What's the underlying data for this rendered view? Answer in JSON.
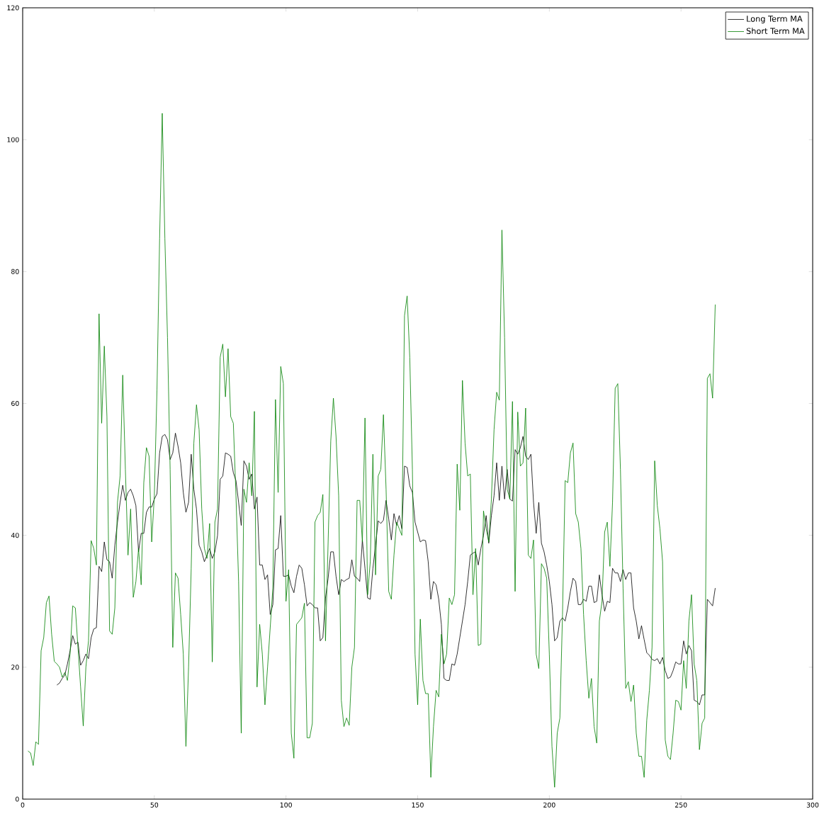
{
  "chart_data": {
    "type": "line",
    "xlim": [
      0,
      300
    ],
    "ylim": [
      0,
      120
    ],
    "xticks": [
      0,
      50,
      100,
      150,
      200,
      250,
      300
    ],
    "yticks": [
      0,
      20,
      40,
      60,
      80,
      100,
      120
    ],
    "legend": "top right",
    "marker": "none",
    "series": [
      {
        "name": "Long Term MA",
        "color": "#000000",
        "x": [
          13,
          14,
          15,
          16,
          17,
          18,
          19,
          20,
          21,
          22,
          23,
          24,
          25,
          26,
          27,
          28,
          29,
          30,
          31,
          32,
          33,
          34,
          35,
          36,
          37,
          38,
          39,
          40,
          41,
          42,
          43,
          44,
          45,
          46,
          47,
          48,
          49,
          50,
          51,
          52,
          53,
          54,
          55,
          56,
          57,
          58,
          59,
          60,
          61,
          62,
          63,
          64,
          65,
          66,
          67,
          68,
          69,
          70,
          71,
          72,
          73,
          74,
          75,
          76,
          77,
          78,
          79,
          80,
          81,
          82,
          83,
          84,
          85,
          86,
          87,
          88,
          89,
          90,
          91,
          92,
          93,
          94,
          95,
          96,
          97,
          98,
          99,
          100,
          101,
          102,
          103,
          104,
          105,
          106,
          107,
          108,
          109,
          110,
          111,
          112,
          113,
          114,
          115,
          116,
          117,
          118,
          119,
          120,
          121,
          122,
          123,
          124,
          125,
          126,
          127,
          128,
          129,
          130,
          131,
          132,
          133,
          134,
          135,
          136,
          137,
          138,
          139,
          140,
          141,
          142,
          143,
          144,
          145,
          146,
          147,
          148,
          149,
          150,
          151,
          152,
          153,
          154,
          155,
          156,
          157,
          158,
          159,
          160,
          161,
          162,
          163,
          164,
          165,
          166,
          167,
          168,
          169,
          170,
          171,
          172,
          173,
          174,
          175,
          176,
          177,
          178,
          179,
          180,
          181,
          182,
          183,
          184,
          185,
          186,
          187,
          188,
          189,
          190,
          191,
          192,
          193,
          194,
          195,
          196,
          197,
          198,
          199,
          200,
          201,
          202,
          203,
          204,
          205,
          206,
          207,
          208,
          209,
          210,
          211,
          212,
          213,
          214,
          215,
          216,
          217,
          218,
          219,
          220,
          221,
          222,
          223,
          224,
          225,
          226,
          227,
          228,
          229,
          230,
          231,
          232,
          233,
          234,
          235,
          236,
          237,
          238,
          239,
          240,
          241,
          242,
          243,
          244,
          245,
          246,
          247,
          248,
          249,
          250,
          251,
          252,
          253,
          254,
          255,
          256,
          257,
          258,
          259,
          260,
          261,
          262,
          263
        ],
        "values": [
          17.3,
          17.6,
          18.3,
          18.8,
          20.5,
          22.5,
          24.8,
          23.5,
          23.8,
          20.3,
          21,
          22,
          21.3,
          24.5,
          25.8,
          26,
          35.3,
          34.5,
          39,
          36.3,
          36,
          33.5,
          38.5,
          42,
          45,
          47.6,
          45.3,
          46.5,
          47,
          46,
          44.5,
          37.5,
          40.3,
          40.3,
          43.5,
          44.3,
          44.3,
          45.5,
          46.3,
          52.5,
          55,
          55.3,
          54.5,
          51.5,
          52.5,
          55.5,
          53.5,
          51,
          46.5,
          43.5,
          45,
          52.3,
          47,
          44,
          38.5,
          37.5,
          36,
          37,
          38,
          36.5,
          37.5,
          40,
          48.5,
          49,
          52.5,
          52.3,
          52,
          49.5,
          48.3,
          45,
          41.5,
          51.3,
          50.5,
          48.5,
          49.3,
          44,
          45.8,
          35.5,
          35.5,
          33.3,
          34,
          28,
          29.5,
          37.8,
          38,
          43,
          33.8,
          33.8,
          34,
          32.3,
          31.3,
          33.8,
          35.5,
          35,
          32.5,
          29.3,
          29.8,
          29.5,
          29,
          29,
          24,
          24.5,
          30.5,
          33.5,
          37.5,
          37.5,
          33.8,
          31,
          33.3,
          33,
          33.3,
          33.5,
          36.3,
          33.8,
          33.5,
          33,
          39.3,
          35,
          30.5,
          30.3,
          35,
          38.5,
          42.2,
          41.8,
          42.3,
          45.3,
          42.5,
          39.3,
          43.3,
          41.5,
          43,
          41,
          50.5,
          50.3,
          47.5,
          46.5,
          42,
          40.5,
          39,
          39.3,
          39.2,
          36,
          30.3,
          33,
          32.5,
          30.3,
          26.5,
          18.3,
          18,
          18,
          20.5,
          20.3,
          22,
          24.5,
          27,
          29.5,
          33,
          37,
          37.3,
          37.5,
          35.5,
          38,
          40,
          43,
          38.8,
          43,
          46,
          51,
          45.3,
          50.5,
          45.5,
          50,
          45.5,
          45.2,
          53,
          52.3,
          53.3,
          55,
          52,
          51.5,
          52.3,
          45,
          40.3,
          45,
          38.8,
          37.5,
          35.5,
          33,
          29.5,
          24,
          24.5,
          27,
          27.5,
          27,
          29,
          31.5,
          33.5,
          33,
          29.5,
          29.5,
          30.3,
          30,
          32.3,
          32.3,
          29.8,
          30,
          34,
          31,
          28.5,
          30,
          29.8,
          35,
          34.3,
          34.3,
          33,
          34.8,
          33.3,
          34.3,
          34.3,
          29,
          27,
          24.3,
          26.3,
          24.2,
          22.2,
          21.8,
          21.2,
          21,
          21.3,
          20.5,
          21.5,
          19.5,
          18.3,
          18.5,
          19.5,
          20.8,
          20.5,
          20.5,
          24,
          22,
          23.3,
          22.5,
          15,
          14.8,
          14.3,
          15.8,
          15.8,
          30.3,
          29.8,
          29.3,
          32
        ]
      },
      {
        "name": "Short Term MA",
        "color": "#008000",
        "x": [
          2,
          3,
          4,
          5,
          6,
          7,
          8,
          9,
          10,
          11,
          12,
          13,
          14,
          15,
          16,
          17,
          18,
          19,
          20,
          21,
          22,
          23,
          24,
          25,
          26,
          27,
          28,
          29,
          30,
          31,
          32,
          33,
          34,
          35,
          36,
          37,
          38,
          39,
          40,
          41,
          42,
          43,
          44,
          45,
          46,
          47,
          48,
          49,
          50,
          51,
          52,
          53,
          54,
          55,
          56,
          57,
          58,
          59,
          60,
          61,
          62,
          63,
          64,
          65,
          66,
          67,
          68,
          69,
          70,
          71,
          72,
          73,
          74,
          75,
          76,
          77,
          78,
          79,
          80,
          81,
          82,
          83,
          84,
          85,
          86,
          87,
          88,
          89,
          90,
          91,
          92,
          93,
          94,
          95,
          96,
          97,
          98,
          99,
          100,
          101,
          102,
          103,
          104,
          105,
          106,
          107,
          108,
          109,
          110,
          111,
          112,
          113,
          114,
          115,
          116,
          117,
          118,
          119,
          120,
          121,
          122,
          123,
          124,
          125,
          126,
          127,
          128,
          129,
          130,
          131,
          132,
          133,
          134,
          135,
          136,
          137,
          138,
          139,
          140,
          141,
          142,
          143,
          144,
          145,
          146,
          147,
          148,
          149,
          150,
          151,
          152,
          153,
          154,
          155,
          156,
          157,
          158,
          159,
          160,
          161,
          162,
          163,
          164,
          165,
          166,
          167,
          168,
          169,
          170,
          171,
          172,
          173,
          174,
          175,
          176,
          177,
          178,
          179,
          180,
          181,
          182,
          183,
          184,
          185,
          186,
          187,
          188,
          189,
          190,
          191,
          192,
          193,
          194,
          195,
          196,
          197,
          198,
          199,
          200,
          201,
          202,
          203,
          204,
          205,
          206,
          207,
          208,
          209,
          210,
          211,
          212,
          213,
          214,
          215,
          216,
          217,
          218,
          219,
          220,
          221,
          222,
          223,
          224,
          225,
          226,
          227,
          228,
          229,
          230,
          231,
          232,
          233,
          234,
          235,
          236,
          237,
          238,
          239,
          240,
          241,
          242,
          243,
          244,
          245,
          246,
          247,
          248,
          249,
          250,
          251,
          252,
          253,
          254,
          255,
          256,
          257,
          258,
          259,
          260,
          261,
          262,
          263
        ],
        "values": [
          7.3,
          7,
          5.1,
          8.7,
          8.3,
          22.5,
          24.5,
          29.8,
          30.8,
          25,
          20.9,
          20.5,
          20,
          18.5,
          19.2,
          18,
          22,
          29.3,
          29,
          23,
          17,
          11.1,
          20,
          24,
          39.2,
          38,
          35.5,
          73.6,
          57,
          68.7,
          58,
          25.5,
          25,
          29,
          45,
          49,
          64.3,
          50,
          37,
          44,
          30.6,
          33,
          38,
          32.5,
          48,
          53.3,
          52,
          39,
          46,
          62,
          85,
          104,
          85,
          70,
          50,
          23,
          34.3,
          33.5,
          28,
          22,
          8,
          20,
          35,
          54,
          59.8,
          56,
          44,
          38,
          36.5,
          41.8,
          20.8,
          42,
          44,
          67,
          69,
          61,
          68.3,
          58,
          57,
          46,
          33,
          10,
          47,
          45,
          51,
          46,
          58.8,
          17,
          26.5,
          22,
          14.3,
          20,
          26,
          32,
          60.6,
          46.5,
          65.6,
          63,
          30,
          34.8,
          10,
          6.2,
          26.5,
          27,
          27.5,
          29.7,
          9.3,
          9.3,
          11.5,
          42,
          43,
          43.5,
          46.2,
          24,
          39,
          54.3,
          60.8,
          55,
          46,
          15,
          11,
          12.3,
          11.2,
          20,
          23,
          45.3,
          45.3,
          39,
          57.8,
          31,
          36,
          52.3,
          34,
          49,
          50,
          58.3,
          47,
          31.5,
          30.3,
          37,
          42,
          41,
          40,
          73.3,
          76.3,
          67,
          50,
          22,
          14.3,
          27.3,
          18,
          16,
          16,
          3.3,
          11,
          16.5,
          15.5,
          25,
          20.5,
          22,
          30.5,
          29.5,
          31,
          50.8,
          43.8,
          63.5,
          54,
          49,
          49.3,
          31,
          38,
          23.3,
          23.5,
          43.7,
          41,
          39,
          45.5,
          56,
          61.7,
          60.5,
          86.3,
          70,
          47,
          45.5,
          60.3,
          31.5,
          58.7,
          50.5,
          51,
          59.3,
          37,
          36.5,
          39.3,
          22,
          19.8,
          35.7,
          35,
          33.5,
          22,
          8,
          1.8,
          10,
          12.3,
          28,
          48.3,
          48,
          52.5,
          54,
          43.3,
          42,
          38,
          28,
          21,
          15.3,
          18.3,
          11,
          8.5,
          27,
          30,
          40.5,
          42,
          35.3,
          45,
          62.3,
          63,
          50,
          32,
          16.8,
          17.8,
          14.8,
          17.3,
          10,
          6.5,
          6.5,
          3.3,
          12,
          16.5,
          23,
          51.3,
          44.5,
          41,
          36,
          9,
          6.5,
          6,
          10,
          15,
          14.8,
          13.5,
          21,
          16.8,
          27,
          31,
          20.5,
          18,
          7.5,
          11.5,
          12.3,
          63.8,
          64.5,
          60.8,
          75
        ]
      }
    ]
  }
}
